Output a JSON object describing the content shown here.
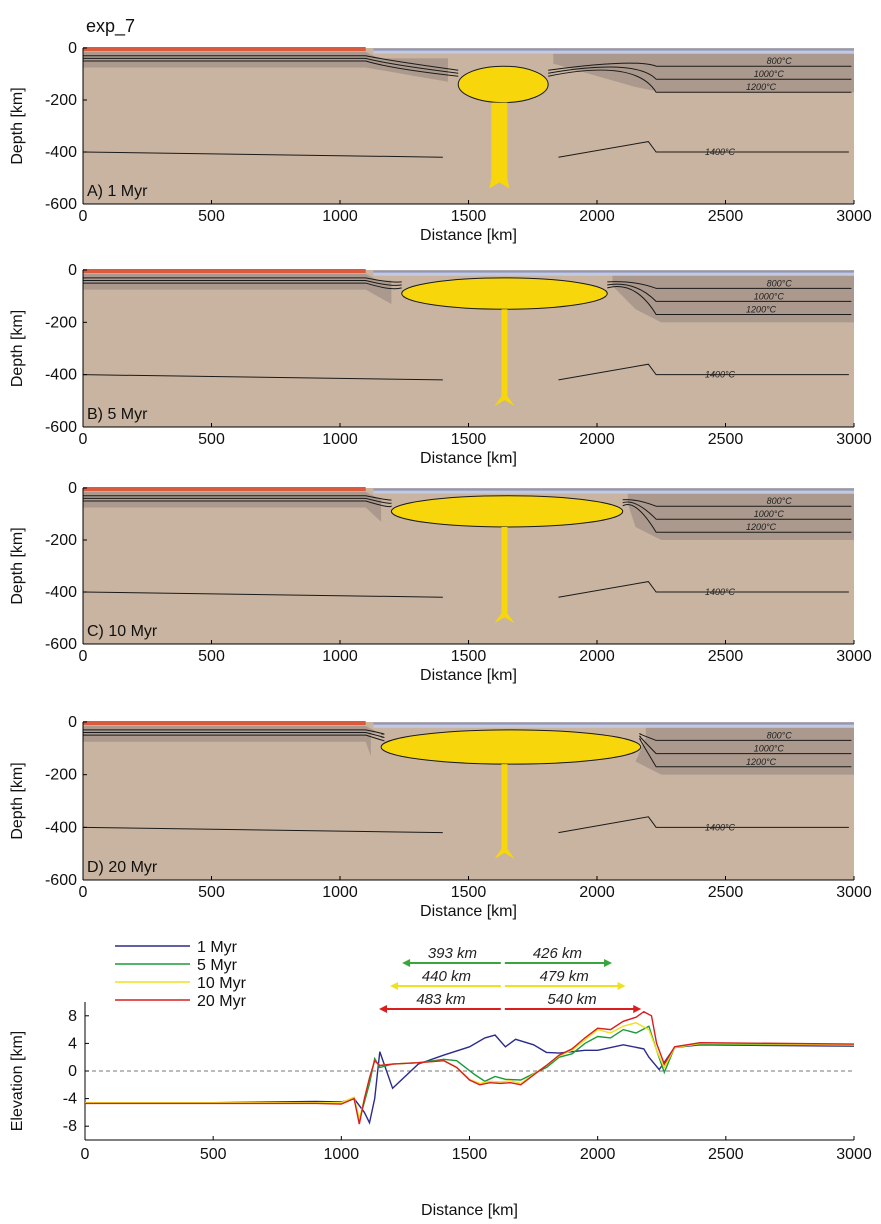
{
  "figure_title": "exp_7",
  "colors": {
    "asthenosphere": "#c8b4a0",
    "lithosphere": "#a6948a",
    "plume": "#f8d60c",
    "ocean_lith": "#8d96be",
    "ocean_light": "#c3c9de",
    "sediment": "#d95a3c",
    "isotherm": "#1a1a1a",
    "line_1": "#2b2b8c",
    "line_5": "#1a9a3a",
    "line_10": "#f0e020",
    "line_20": "#d81e1e",
    "arrow_green": "#3aa63a",
    "arrow_yellow": "#f0e020",
    "arrow_red": "#d81e1e"
  },
  "chart_data": [
    {
      "type": "heatmap",
      "panel_label": "A) 1 Myr",
      "xlabel": "Distance [km]",
      "ylabel": "Depth [km]",
      "xlim": [
        0,
        3000
      ],
      "ylim": [
        -600,
        0
      ],
      "xticks": [
        "0",
        "500",
        "1000",
        "1500",
        "2000",
        "2500",
        "3000"
      ],
      "yticks": [
        "0",
        "-200",
        "-400",
        "-600"
      ],
      "isotherm_labels": [
        "800°C",
        "1000°C",
        "1200°C",
        "1400°C"
      ],
      "plume": {
        "center_km": 1620,
        "head_left_km": 1460,
        "head_right_km": 1810,
        "head_top_km": -70,
        "head_bottom_km": -210,
        "tail_bottom_km": -540
      },
      "isotherm_depths_km": {
        "800°C": -70,
        "1000°C": -120,
        "1200°C": -170,
        "1400°C": -400
      }
    },
    {
      "type": "heatmap",
      "panel_label": "B) 5 Myr",
      "xlabel": "Distance [km]",
      "ylabel": "Depth [km]",
      "xlim": [
        0,
        3000
      ],
      "ylim": [
        -600,
        0
      ],
      "xticks": [
        "0",
        "500",
        "1000",
        "1500",
        "2000",
        "2500",
        "3000"
      ],
      "yticks": [
        "0",
        "-200",
        "-400",
        "-600"
      ],
      "isotherm_labels": [
        "800°C",
        "1000°C",
        "1200°C",
        "1400°C"
      ],
      "plume": {
        "center_km": 1640,
        "head_left_km": 1240,
        "head_right_km": 2040,
        "head_top_km": -30,
        "head_bottom_km": -150,
        "tail_bottom_km": -520
      },
      "isotherm_depths_km": {
        "800°C": -70,
        "1000°C": -120,
        "1200°C": -170,
        "1400°C": -400
      }
    },
    {
      "type": "heatmap",
      "panel_label": "C) 10 Myr",
      "xlabel": "Distance [km]",
      "ylabel": "Depth [km]",
      "xlim": [
        0,
        3000
      ],
      "ylim": [
        -600,
        0
      ],
      "xticks": [
        "0",
        "500",
        "1000",
        "1500",
        "2000",
        "2500",
        "3000"
      ],
      "yticks": [
        "0",
        "-200",
        "-400",
        "-600"
      ],
      "isotherm_labels": [
        "800°C",
        "1000°C",
        "1200°C",
        "1400°C"
      ],
      "plume": {
        "center_km": 1640,
        "head_left_km": 1200,
        "head_right_km": 2100,
        "head_top_km": -30,
        "head_bottom_km": -150,
        "tail_bottom_km": -520
      },
      "isotherm_depths_km": {
        "800°C": -70,
        "1000°C": -120,
        "1200°C": -170,
        "1400°C": -400
      }
    },
    {
      "type": "heatmap",
      "panel_label": "D) 20 Myr",
      "xlabel": "Distance [km]",
      "ylabel": "Depth [km]",
      "xlim": [
        0,
        3000
      ],
      "ylim": [
        -600,
        0
      ],
      "xticks": [
        "0",
        "500",
        "1000",
        "1500",
        "2000",
        "2500",
        "3000"
      ],
      "yticks": [
        "0",
        "-200",
        "-400",
        "-600"
      ],
      "isotherm_labels": [
        "800°C",
        "1000°C",
        "1200°C",
        "1400°C"
      ],
      "plume": {
        "center_km": 1640,
        "head_left_km": 1160,
        "head_right_km": 2170,
        "head_top_km": -30,
        "head_bottom_km": -160,
        "tail_bottom_km": -520
      },
      "isotherm_depths_km": {
        "800°C": -70,
        "1000°C": -120,
        "1200°C": -170,
        "1400°C": -400
      }
    },
    {
      "type": "line",
      "xlabel": "Distance [km]",
      "ylabel": "Elevation [km]",
      "xlim": [
        0,
        3000
      ],
      "ylim": [
        -10,
        10
      ],
      "xticks": [
        "0",
        "500",
        "1000",
        "1500",
        "2000",
        "2500",
        "3000"
      ],
      "yticks": [
        "8",
        "4",
        "0",
        "-4",
        "-8"
      ],
      "legend": "top-left",
      "zero_line": "dashed",
      "series": [
        {
          "name": "1 Myr",
          "x": [
            0,
            500,
            900,
            1000,
            1050,
            1090,
            1110,
            1130,
            1150,
            1200,
            1300,
            1400,
            1500,
            1560,
            1600,
            1640,
            1680,
            1750,
            1800,
            1850,
            1900,
            1950,
            2000,
            2100,
            2180,
            2200,
            2240,
            2300,
            2400,
            3000
          ],
          "y": [
            -4.6,
            -4.6,
            -4.4,
            -4.5,
            -4.0,
            -6.0,
            -7.5,
            -4.0,
            2.8,
            -2.5,
            1.0,
            2.3,
            3.5,
            4.8,
            5.2,
            3.5,
            4.6,
            3.8,
            2.7,
            2.6,
            2.8,
            3.0,
            3.0,
            3.8,
            3.2,
            2.0,
            0.2,
            3.4,
            3.8,
            3.6
          ]
        },
        {
          "name": "5 Myr",
          "x": [
            0,
            500,
            900,
            1000,
            1050,
            1070,
            1090,
            1110,
            1130,
            1150,
            1200,
            1300,
            1400,
            1450,
            1520,
            1560,
            1600,
            1640,
            1700,
            1760,
            1800,
            1850,
            1900,
            1950,
            2000,
            2050,
            2100,
            2150,
            2200,
            2230,
            2260,
            2300,
            2400,
            3000
          ],
          "y": [
            -4.6,
            -4.6,
            -4.6,
            -4.6,
            -4.0,
            -7.0,
            -4.5,
            -1.8,
            1.8,
            0.5,
            1.0,
            1.2,
            1.7,
            1.5,
            -0.5,
            -1.5,
            -0.8,
            -1.2,
            -1.3,
            -0.2,
            0.5,
            2.0,
            2.5,
            4.0,
            5.0,
            4.8,
            6.0,
            5.5,
            6.5,
            3.0,
            -0.2,
            3.4,
            3.9,
            3.7
          ]
        },
        {
          "name": "10 Myr",
          "x": [
            0,
            500,
            900,
            1000,
            1050,
            1070,
            1090,
            1110,
            1130,
            1150,
            1200,
            1300,
            1400,
            1450,
            1500,
            1540,
            1580,
            1620,
            1660,
            1700,
            1760,
            1800,
            1850,
            1900,
            1950,
            2000,
            2050,
            2100,
            2150,
            2200,
            2230,
            2260,
            2300,
            2400,
            3000
          ],
          "y": [
            -4.6,
            -4.6,
            -4.6,
            -4.6,
            -3.8,
            -7.0,
            -4.0,
            -1.0,
            1.5,
            0.8,
            1.0,
            1.2,
            1.5,
            0.5,
            -1.2,
            -1.8,
            -1.5,
            -1.6,
            -1.4,
            -1.8,
            -0.2,
            0.8,
            2.2,
            3.0,
            4.5,
            6.0,
            5.5,
            6.5,
            7.0,
            6.0,
            3.0,
            0.5,
            3.4,
            4.0,
            3.8
          ]
        },
        {
          "name": "20 Myr",
          "x": [
            0,
            500,
            900,
            1000,
            1050,
            1070,
            1090,
            1110,
            1130,
            1150,
            1200,
            1300,
            1400,
            1450,
            1500,
            1540,
            1580,
            1620,
            1660,
            1700,
            1760,
            1800,
            1850,
            1900,
            1950,
            2000,
            2050,
            2100,
            2150,
            2180,
            2210,
            2230,
            2260,
            2300,
            2400,
            3000
          ],
          "y": [
            -4.7,
            -4.7,
            -4.7,
            -4.8,
            -4.0,
            -7.7,
            -4.0,
            -1.0,
            1.5,
            0.8,
            1.0,
            1.2,
            1.5,
            0.5,
            -1.3,
            -2.0,
            -1.7,
            -1.8,
            -1.7,
            -2.0,
            -0.3,
            0.8,
            2.3,
            3.2,
            4.8,
            6.2,
            6.0,
            7.2,
            7.8,
            8.6,
            8.0,
            4.0,
            1.0,
            3.5,
            4.1,
            3.9
          ]
        }
      ],
      "arrows": [
        {
          "color_key": "arrow_green",
          "center_km": 1630,
          "left_km": 1237,
          "right_km": 2056,
          "left_label": "393 km",
          "right_label": "426 km"
        },
        {
          "color_key": "arrow_yellow",
          "center_km": 1630,
          "left_km": 1190,
          "right_km": 2109,
          "left_label": "440 km",
          "right_label": "479 km"
        },
        {
          "color_key": "arrow_red",
          "center_km": 1630,
          "left_km": 1147,
          "right_km": 2170,
          "left_label": "483 km",
          "right_label": "540 km"
        }
      ]
    }
  ]
}
